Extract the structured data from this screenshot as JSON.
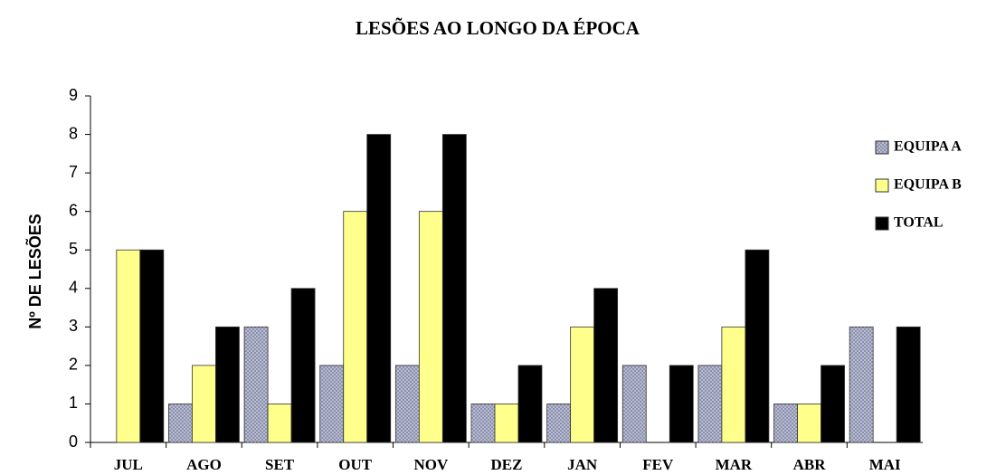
{
  "chart_data": {
    "type": "bar",
    "title": "LESÕES AO LONGO DA ÉPOCA",
    "y_label": "Nº DE LESÕES",
    "categories": [
      "JUL",
      "AGO",
      "SET",
      "OUT",
      "NOV",
      "DEZ",
      "JAN",
      "FEV",
      "MAR",
      "ABR",
      "MAI"
    ],
    "series": [
      {
        "name": "EQUIPA A",
        "color": "#8d92b0",
        "values": [
          0,
          1,
          3,
          2,
          2,
          1,
          1,
          2,
          2,
          1,
          3
        ]
      },
      {
        "name": "EQUIPA B",
        "color": "#ffff8c",
        "values": [
          5,
          2,
          1,
          6,
          6,
          1,
          3,
          0,
          3,
          1,
          0
        ]
      },
      {
        "name": "TOTAL",
        "color": "#000000",
        "values": [
          5,
          3,
          4,
          8,
          8,
          2,
          4,
          2,
          5,
          2,
          3
        ]
      }
    ],
    "ylim": [
      0,
      9
    ],
    "yticks": [
      0,
      1,
      2,
      3,
      4,
      5,
      6,
      7,
      8,
      9
    ],
    "legend": "right"
  }
}
